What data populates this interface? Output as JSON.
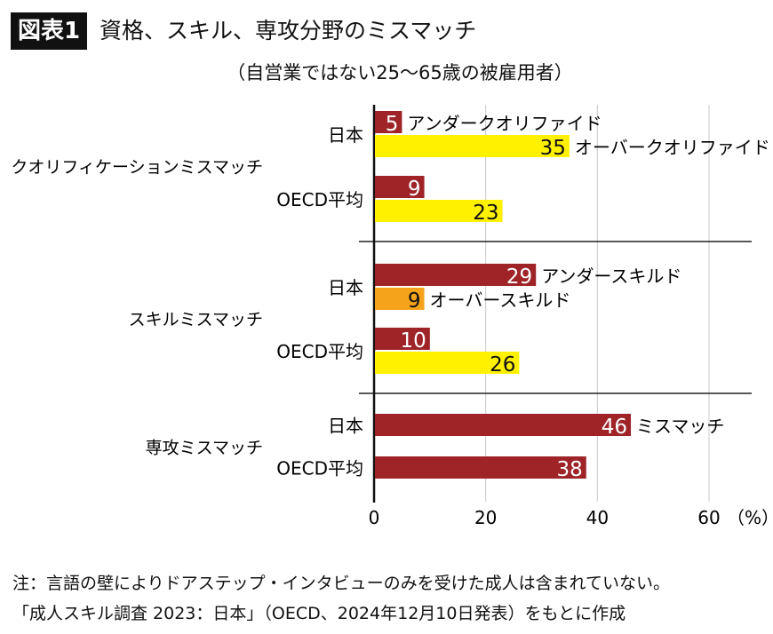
{
  "header": {
    "badge": "図表1",
    "title": "資格、スキル、専攻分野のミスマッチ",
    "subtitle": "（自営業ではない25～65歳の被雇用者）"
  },
  "chart_data": {
    "type": "bar",
    "orientation": "horizontal",
    "title": "資格、スキル、専攻分野のミスマッチ",
    "subtitle": "（自営業ではない25～65歳の被雇用者）",
    "xlim": [
      0,
      60
    ],
    "xticks": [
      "0",
      "20",
      "40",
      "60"
    ],
    "xunit": "（%）",
    "grid": true,
    "colors": {
      "under": "#9e2428",
      "over_yellow": "#fff100",
      "over_orange": "#f6a31c"
    },
    "groups": [
      {
        "label": "クオリフィケーションミスマッチ",
        "rows": [
          {
            "label": "日本",
            "bars": [
              {
                "value": 5,
                "color": "#9e2428",
                "annotation": "アンダークオリファイド"
              },
              {
                "value": 35,
                "color": "#fff100",
                "annotation": "オーバークオリファイド"
              }
            ]
          },
          {
            "label": "OECD平均",
            "bars": [
              {
                "value": 9,
                "color": "#9e2428",
                "annotation": ""
              },
              {
                "value": 23,
                "color": "#fff100",
                "annotation": ""
              }
            ]
          }
        ]
      },
      {
        "label": "スキルミスマッチ",
        "rows": [
          {
            "label": "日本",
            "bars": [
              {
                "value": 29,
                "color": "#9e2428",
                "annotation": "アンダースキルド"
              },
              {
                "value": 9,
                "color": "#f6a31c",
                "annotation": "オーバースキルド"
              }
            ]
          },
          {
            "label": "OECD平均",
            "bars": [
              {
                "value": 10,
                "color": "#9e2428",
                "annotation": ""
              },
              {
                "value": 26,
                "color": "#fff100",
                "annotation": ""
              }
            ]
          }
        ]
      },
      {
        "label": "専攻ミスマッチ",
        "rows": [
          {
            "label": "日本",
            "bars": [
              {
                "value": 46,
                "color": "#9e2428",
                "annotation": "ミスマッチ"
              }
            ]
          },
          {
            "label": "OECD平均",
            "bars": [
              {
                "value": 38,
                "color": "#9e2428",
                "annotation": ""
              }
            ]
          }
        ]
      }
    ]
  },
  "notes": {
    "note": "注：言語の壁によりドアステップ・インタビューのみを受けた成人は含まれていない。",
    "source": "「成人スキル調査 2023：日本」（OECD、2024年12月10日発表）をもとに作成"
  }
}
